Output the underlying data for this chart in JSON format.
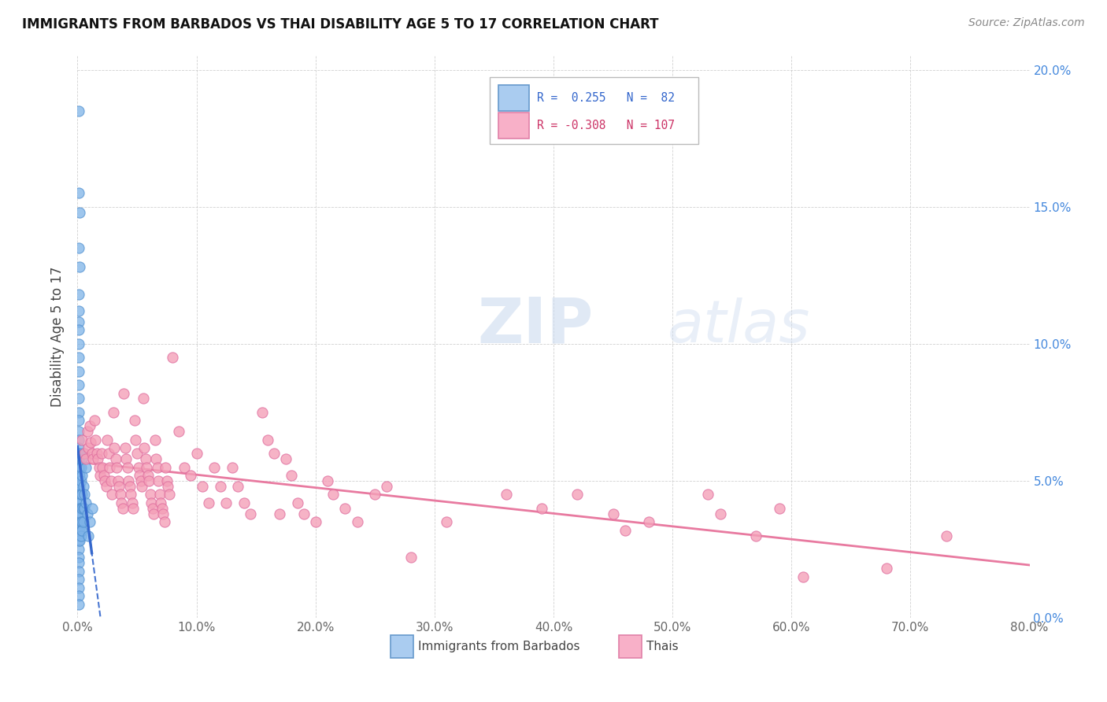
{
  "title": "IMMIGRANTS FROM BARBADOS VS THAI DISABILITY AGE 5 TO 17 CORRELATION CHART",
  "source": "Source: ZipAtlas.com",
  "ylabel_left": "Disability Age 5 to 17",
  "xlim": [
    0.0,
    0.8
  ],
  "ylim": [
    0.0,
    0.205
  ],
  "legend_label1": "Immigrants from Barbados",
  "legend_label2": "Thais",
  "barbados_color": "#7eb3e8",
  "thai_color": "#f4a0b8",
  "trendline_barbados_color": "#3366cc",
  "trendline_thai_color": "#e87aa0",
  "watermark_zip": "ZIP",
  "watermark_atlas": "atlas",
  "barbados_points": [
    [
      0.001,
      0.185
    ],
    [
      0.001,
      0.155
    ],
    [
      0.002,
      0.148
    ],
    [
      0.001,
      0.135
    ],
    [
      0.002,
      0.128
    ],
    [
      0.001,
      0.118
    ],
    [
      0.001,
      0.112
    ],
    [
      0.001,
      0.108
    ],
    [
      0.001,
      0.105
    ],
    [
      0.001,
      0.1
    ],
    [
      0.001,
      0.095
    ],
    [
      0.001,
      0.09
    ],
    [
      0.001,
      0.085
    ],
    [
      0.001,
      0.08
    ],
    [
      0.001,
      0.075
    ],
    [
      0.001,
      0.072
    ],
    [
      0.001,
      0.068
    ],
    [
      0.001,
      0.065
    ],
    [
      0.001,
      0.062
    ],
    [
      0.001,
      0.058
    ],
    [
      0.001,
      0.055
    ],
    [
      0.001,
      0.052
    ],
    [
      0.001,
      0.05
    ],
    [
      0.001,
      0.048
    ],
    [
      0.001,
      0.046
    ],
    [
      0.001,
      0.044
    ],
    [
      0.001,
      0.042
    ],
    [
      0.001,
      0.04
    ],
    [
      0.001,
      0.038
    ],
    [
      0.001,
      0.036
    ],
    [
      0.001,
      0.034
    ],
    [
      0.001,
      0.032
    ],
    [
      0.001,
      0.03
    ],
    [
      0.001,
      0.028
    ],
    [
      0.001,
      0.025
    ],
    [
      0.001,
      0.022
    ],
    [
      0.001,
      0.02
    ],
    [
      0.001,
      0.017
    ],
    [
      0.001,
      0.014
    ],
    [
      0.001,
      0.011
    ],
    [
      0.001,
      0.008
    ],
    [
      0.001,
      0.005
    ],
    [
      0.002,
      0.06
    ],
    [
      0.002,
      0.055
    ],
    [
      0.002,
      0.052
    ],
    [
      0.002,
      0.048
    ],
    [
      0.002,
      0.045
    ],
    [
      0.002,
      0.042
    ],
    [
      0.002,
      0.04
    ],
    [
      0.002,
      0.037
    ],
    [
      0.002,
      0.035
    ],
    [
      0.002,
      0.033
    ],
    [
      0.002,
      0.031
    ],
    [
      0.002,
      0.028
    ],
    [
      0.003,
      0.055
    ],
    [
      0.003,
      0.05
    ],
    [
      0.003,
      0.045
    ],
    [
      0.003,
      0.04
    ],
    [
      0.003,
      0.038
    ],
    [
      0.003,
      0.035
    ],
    [
      0.003,
      0.032
    ],
    [
      0.003,
      0.03
    ],
    [
      0.004,
      0.058
    ],
    [
      0.004,
      0.052
    ],
    [
      0.004,
      0.045
    ],
    [
      0.004,
      0.04
    ],
    [
      0.004,
      0.035
    ],
    [
      0.004,
      0.032
    ],
    [
      0.005,
      0.06
    ],
    [
      0.005,
      0.048
    ],
    [
      0.005,
      0.04
    ],
    [
      0.005,
      0.035
    ],
    [
      0.006,
      0.045
    ],
    [
      0.006,
      0.04
    ],
    [
      0.007,
      0.055
    ],
    [
      0.007,
      0.042
    ],
    [
      0.008,
      0.038
    ],
    [
      0.009,
      0.03
    ],
    [
      0.01,
      0.035
    ],
    [
      0.012,
      0.04
    ]
  ],
  "thai_points": [
    [
      0.004,
      0.065
    ],
    [
      0.006,
      0.06
    ],
    [
      0.007,
      0.058
    ],
    [
      0.008,
      0.068
    ],
    [
      0.009,
      0.062
    ],
    [
      0.01,
      0.07
    ],
    [
      0.011,
      0.064
    ],
    [
      0.012,
      0.06
    ],
    [
      0.013,
      0.058
    ],
    [
      0.014,
      0.072
    ],
    [
      0.015,
      0.065
    ],
    [
      0.016,
      0.06
    ],
    [
      0.017,
      0.058
    ],
    [
      0.018,
      0.055
    ],
    [
      0.019,
      0.052
    ],
    [
      0.02,
      0.06
    ],
    [
      0.021,
      0.055
    ],
    [
      0.022,
      0.052
    ],
    [
      0.023,
      0.05
    ],
    [
      0.024,
      0.048
    ],
    [
      0.025,
      0.065
    ],
    [
      0.026,
      0.06
    ],
    [
      0.027,
      0.055
    ],
    [
      0.028,
      0.05
    ],
    [
      0.029,
      0.045
    ],
    [
      0.03,
      0.075
    ],
    [
      0.031,
      0.062
    ],
    [
      0.032,
      0.058
    ],
    [
      0.033,
      0.055
    ],
    [
      0.034,
      0.05
    ],
    [
      0.035,
      0.048
    ],
    [
      0.036,
      0.045
    ],
    [
      0.037,
      0.042
    ],
    [
      0.038,
      0.04
    ],
    [
      0.039,
      0.082
    ],
    [
      0.04,
      0.062
    ],
    [
      0.041,
      0.058
    ],
    [
      0.042,
      0.055
    ],
    [
      0.043,
      0.05
    ],
    [
      0.044,
      0.048
    ],
    [
      0.045,
      0.045
    ],
    [
      0.046,
      0.042
    ],
    [
      0.047,
      0.04
    ],
    [
      0.048,
      0.072
    ],
    [
      0.049,
      0.065
    ],
    [
      0.05,
      0.06
    ],
    [
      0.051,
      0.055
    ],
    [
      0.052,
      0.052
    ],
    [
      0.053,
      0.05
    ],
    [
      0.054,
      0.048
    ],
    [
      0.055,
      0.08
    ],
    [
      0.056,
      0.062
    ],
    [
      0.057,
      0.058
    ],
    [
      0.058,
      0.055
    ],
    [
      0.059,
      0.052
    ],
    [
      0.06,
      0.05
    ],
    [
      0.061,
      0.045
    ],
    [
      0.062,
      0.042
    ],
    [
      0.063,
      0.04
    ],
    [
      0.064,
      0.038
    ],
    [
      0.065,
      0.065
    ],
    [
      0.066,
      0.058
    ],
    [
      0.067,
      0.055
    ],
    [
      0.068,
      0.05
    ],
    [
      0.069,
      0.045
    ],
    [
      0.07,
      0.042
    ],
    [
      0.071,
      0.04
    ],
    [
      0.072,
      0.038
    ],
    [
      0.073,
      0.035
    ],
    [
      0.074,
      0.055
    ],
    [
      0.075,
      0.05
    ],
    [
      0.076,
      0.048
    ],
    [
      0.077,
      0.045
    ],
    [
      0.08,
      0.095
    ],
    [
      0.085,
      0.068
    ],
    [
      0.09,
      0.055
    ],
    [
      0.095,
      0.052
    ],
    [
      0.1,
      0.06
    ],
    [
      0.105,
      0.048
    ],
    [
      0.11,
      0.042
    ],
    [
      0.115,
      0.055
    ],
    [
      0.12,
      0.048
    ],
    [
      0.125,
      0.042
    ],
    [
      0.13,
      0.055
    ],
    [
      0.135,
      0.048
    ],
    [
      0.14,
      0.042
    ],
    [
      0.145,
      0.038
    ],
    [
      0.155,
      0.075
    ],
    [
      0.16,
      0.065
    ],
    [
      0.165,
      0.06
    ],
    [
      0.17,
      0.038
    ],
    [
      0.175,
      0.058
    ],
    [
      0.18,
      0.052
    ],
    [
      0.185,
      0.042
    ],
    [
      0.19,
      0.038
    ],
    [
      0.2,
      0.035
    ],
    [
      0.21,
      0.05
    ],
    [
      0.215,
      0.045
    ],
    [
      0.225,
      0.04
    ],
    [
      0.235,
      0.035
    ],
    [
      0.25,
      0.045
    ],
    [
      0.26,
      0.048
    ],
    [
      0.28,
      0.022
    ],
    [
      0.31,
      0.035
    ],
    [
      0.36,
      0.045
    ],
    [
      0.39,
      0.04
    ],
    [
      0.42,
      0.045
    ],
    [
      0.45,
      0.038
    ],
    [
      0.46,
      0.032
    ],
    [
      0.48,
      0.035
    ],
    [
      0.53,
      0.045
    ],
    [
      0.54,
      0.038
    ],
    [
      0.57,
      0.03
    ],
    [
      0.59,
      0.04
    ],
    [
      0.61,
      0.015
    ],
    [
      0.68,
      0.018
    ],
    [
      0.73,
      0.03
    ]
  ],
  "x_ticks": [
    0.0,
    0.1,
    0.2,
    0.3,
    0.4,
    0.5,
    0.6,
    0.7,
    0.8
  ],
  "x_tick_labels": [
    "0.0%",
    "10.0%",
    "20.0%",
    "30.0%",
    "40.0%",
    "50.0%",
    "60.0%",
    "70.0%",
    "80.0%"
  ],
  "y_ticks": [
    0.0,
    0.05,
    0.1,
    0.15,
    0.2
  ],
  "y_tick_labels": [
    "0.0%",
    "5.0%",
    "10.0%",
    "15.0%",
    "20.0%"
  ]
}
